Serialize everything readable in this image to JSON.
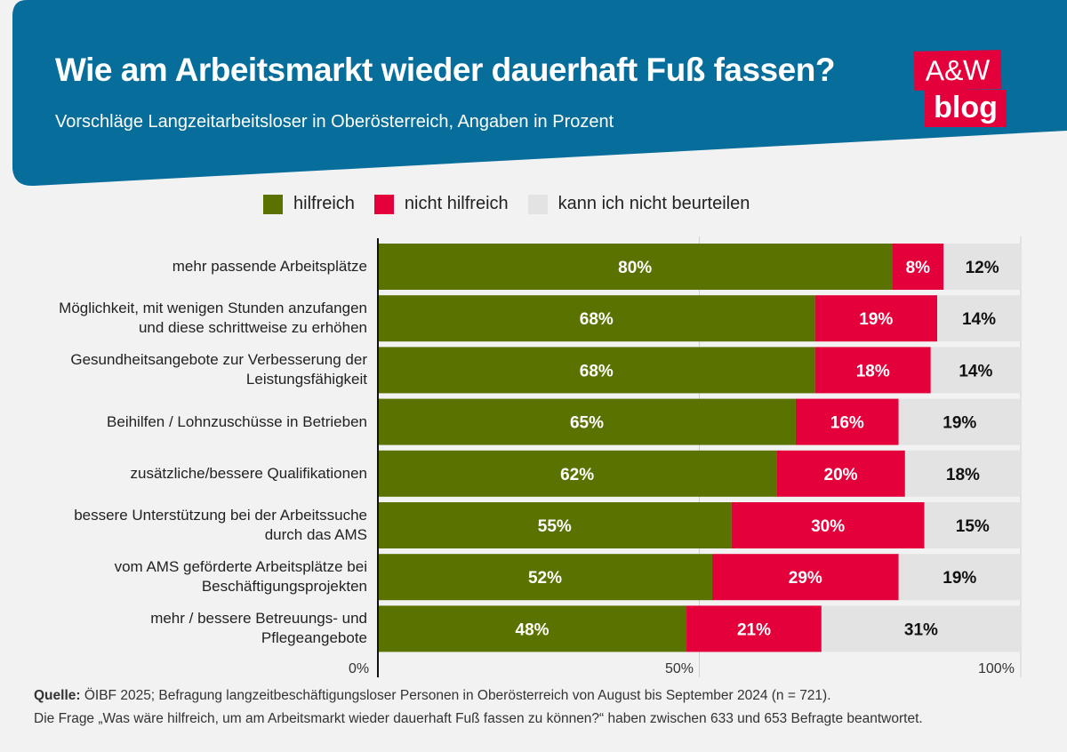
{
  "header": {
    "title": "Wie am Arbeitsmarkt wieder dauerhaft Fuß fassen?",
    "subtitle": "Vorschläge Langzeitarbeitsloser in Oberösterreich, Angaben in Prozent",
    "logo_top": "A&W",
    "logo_bottom": "blog"
  },
  "colors": {
    "banner": "#076e9c",
    "hilfreich": "#5a7300",
    "nicht_hilfreich": "#e4003a",
    "kann_nicht": "#e3e3e3",
    "logo": "#e4003a"
  },
  "chart_data": {
    "type": "bar",
    "orientation": "horizontal-stacked",
    "title": "Wie am Arbeitsmarkt wieder dauerhaft Fuß fassen?",
    "subtitle": "Vorschläge Langzeitarbeitsloser in Oberösterreich, Angaben in Prozent",
    "xlim": [
      0,
      100
    ],
    "xticks": [
      "0%",
      "50%",
      "100%"
    ],
    "grid": true,
    "legend_position": "top",
    "categories": [
      "mehr passende Arbeitsplätze",
      "Möglichkeit, mit wenigen Stunden anzufangen\nund diese schrittweise zu erhöhen",
      "Gesundheitsangebote zur Verbesserung der\nLeistungsfähigkeit",
      "Beihilfen / Lohnzuschüsse in Betrieben",
      "zusätzliche/bessere Qualifikationen",
      "bessere Unterstützung bei der Arbeitssuche\ndurch das AMS",
      "vom AMS geförderte Arbeitsplätze bei\nBeschäftigungsprojekten",
      "mehr / bessere Betreuungs- und\nPflegeangebote"
    ],
    "series": [
      {
        "name": "hilfreich",
        "color": "#5a7300",
        "values": [
          80,
          68,
          68,
          65,
          62,
          55,
          52,
          48
        ]
      },
      {
        "name": "nicht hilfreich",
        "color": "#e4003a",
        "values": [
          8,
          19,
          18,
          16,
          20,
          30,
          29,
          21
        ]
      },
      {
        "name": "kann ich nicht beurteilen",
        "color": "#e3e3e3",
        "values": [
          12,
          14,
          14,
          19,
          18,
          15,
          19,
          31
        ]
      }
    ]
  },
  "footer": {
    "source_label": "Quelle:",
    "source_text": " ÖIBF 2025; Befragung langzeitbeschäftigungsloser Personen in Oberösterreich von August bis September 2024 (n = 721).",
    "note": "Die Frage „Was wäre hilfreich, um am Arbeitsmarkt wieder dauerhaft Fuß fassen zu können?“ haben zwischen 633 und 653 Befragte beantwortet."
  }
}
